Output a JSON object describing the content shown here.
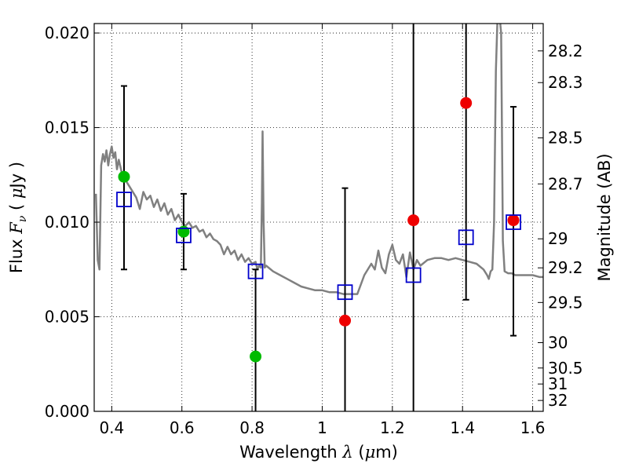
{
  "chart_data": {
    "type": "scatter",
    "xlabel": {
      "prefix": "Wavelength  ",
      "symbol": "λ",
      "suffix": " (",
      "unit_symbol": "μ",
      "unit_rest": "m)"
    },
    "ylabel": {
      "prefix": "Flux  ",
      "symbol": "F",
      "subscript": "ν",
      "suffix": "  ( ",
      "unit_symbol": "μ",
      "unit_rest": "Jy )"
    },
    "y2label": "Magnitude (AB)",
    "xlim": [
      0.35,
      1.63
    ],
    "ylim": [
      0.0,
      0.0205
    ],
    "grid": true,
    "x_ticks": [
      {
        "value": 0.4,
        "label": "0.4"
      },
      {
        "value": 0.6,
        "label": "0.6"
      },
      {
        "value": 0.8,
        "label": "0.8"
      },
      {
        "value": 1.0,
        "label": "1"
      },
      {
        "value": 1.2,
        "label": "1.2"
      },
      {
        "value": 1.4,
        "label": "1.4"
      },
      {
        "value": 1.6,
        "label": "1.6"
      }
    ],
    "y_ticks": [
      {
        "value": 0.0,
        "label": "0.000"
      },
      {
        "value": 0.005,
        "label": "0.005"
      },
      {
        "value": 0.01,
        "label": "0.010"
      },
      {
        "value": 0.015,
        "label": "0.015"
      },
      {
        "value": 0.02,
        "label": "0.020"
      }
    ],
    "y2_ticks": [
      {
        "value": 28.2,
        "label": "28.2"
      },
      {
        "value": 28.3,
        "label": "28.3"
      },
      {
        "value": 28.5,
        "label": "28.5"
      },
      {
        "value": 28.7,
        "label": "28.7"
      },
      {
        "value": 29.0,
        "label": "29"
      },
      {
        "value": 29.2,
        "label": "29.2"
      },
      {
        "value": 29.5,
        "label": "29.5"
      },
      {
        "value": 30.0,
        "label": "30"
      },
      {
        "value": 30.5,
        "label": "30.5"
      },
      {
        "value": 31.0,
        "label": "31"
      },
      {
        "value": 32.0,
        "label": "32"
      }
    ],
    "colors": {
      "model": "#808080",
      "detected": "#00bb00",
      "undetected": "#ee0000",
      "model_phot": "#0000cc",
      "errorbar": "#000000"
    },
    "series": [
      {
        "kind": "line",
        "color": "#808080",
        "x": [
          0.355,
          0.36,
          0.365,
          0.37,
          0.375,
          0.38,
          0.385,
          0.39,
          0.395,
          0.4,
          0.405,
          0.41,
          0.415,
          0.42,
          0.43,
          0.44,
          0.45,
          0.46,
          0.47,
          0.48,
          0.49,
          0.5,
          0.51,
          0.52,
          0.53,
          0.54,
          0.55,
          0.56,
          0.57,
          0.58,
          0.59,
          0.6,
          0.61,
          0.62,
          0.63,
          0.64,
          0.65,
          0.66,
          0.67,
          0.68,
          0.69,
          0.7,
          0.71,
          0.72,
          0.73,
          0.74,
          0.75,
          0.76,
          0.77,
          0.78,
          0.79,
          0.8,
          0.81,
          0.815,
          0.82,
          0.825,
          0.828,
          0.83,
          0.833,
          0.836,
          0.84,
          0.86,
          0.88,
          0.9,
          0.92,
          0.94,
          0.96,
          0.98,
          1.0,
          1.02,
          1.04,
          1.06,
          1.08,
          1.1,
          1.12,
          1.14,
          1.15,
          1.16,
          1.17,
          1.18,
          1.19,
          1.2,
          1.21,
          1.22,
          1.23,
          1.24,
          1.25,
          1.26,
          1.27,
          1.28,
          1.3,
          1.32,
          1.34,
          1.36,
          1.38,
          1.4,
          1.42,
          1.44,
          1.46,
          1.47,
          1.475,
          1.48,
          1.485,
          1.49,
          1.495,
          1.5,
          1.505,
          1.51,
          1.515,
          1.52,
          1.53,
          1.54,
          1.55,
          1.56,
          1.58,
          1.6,
          1.62,
          1.63
        ],
        "y": [
          0.0115,
          0.008,
          0.0075,
          0.013,
          0.0136,
          0.0132,
          0.0138,
          0.013,
          0.0136,
          0.014,
          0.0134,
          0.0137,
          0.0128,
          0.0133,
          0.0125,
          0.0122,
          0.0119,
          0.0116,
          0.0113,
          0.0107,
          0.0116,
          0.0112,
          0.0114,
          0.0108,
          0.0112,
          0.0106,
          0.011,
          0.0104,
          0.0107,
          0.0101,
          0.0104,
          0.01,
          0.0098,
          0.01,
          0.0097,
          0.0098,
          0.0095,
          0.0096,
          0.0092,
          0.0094,
          0.0091,
          0.009,
          0.0088,
          0.0083,
          0.0087,
          0.0083,
          0.0085,
          0.008,
          0.0083,
          0.0079,
          0.0081,
          0.0078,
          0.0079,
          0.0075,
          0.0077,
          0.0076,
          0.011,
          0.0148,
          0.01,
          0.0076,
          0.0077,
          0.0074,
          0.0072,
          0.007,
          0.0068,
          0.0066,
          0.0065,
          0.0064,
          0.0064,
          0.0063,
          0.0063,
          0.0062,
          0.0062,
          0.0062,
          0.0072,
          0.0078,
          0.0075,
          0.0085,
          0.0076,
          0.0073,
          0.0083,
          0.0088,
          0.008,
          0.0078,
          0.0083,
          0.0071,
          0.0084,
          0.0075,
          0.008,
          0.0077,
          0.008,
          0.0081,
          0.0081,
          0.008,
          0.0081,
          0.008,
          0.0079,
          0.0078,
          0.0075,
          0.0072,
          0.007,
          0.0074,
          0.0075,
          0.01,
          0.018,
          0.021,
          0.021,
          0.02,
          0.009,
          0.0074,
          0.0073,
          0.0073,
          0.0072,
          0.0072,
          0.0072,
          0.0072,
          0.0071,
          0.0071
        ]
      },
      {
        "kind": "errorbar",
        "color": "#000000",
        "x": [
          0.435,
          0.605,
          0.81,
          1.065,
          1.26,
          1.41,
          1.545
        ],
        "y_low": [
          0.0075,
          0.0075,
          -0.0005,
          -0.0005,
          -0.0005,
          0.0059,
          0.004
        ],
        "y_high": [
          0.0172,
          0.0115,
          0.0075,
          0.0118,
          0.021,
          0.021,
          0.0161
        ]
      },
      {
        "kind": "points",
        "marker": "circle",
        "color": "#00bb00",
        "x": [
          0.435,
          0.605,
          0.81
        ],
        "y": [
          0.0124,
          0.0095,
          0.0029
        ]
      },
      {
        "kind": "points",
        "marker": "circle",
        "color": "#ee0000",
        "x": [
          1.065,
          1.26,
          1.41,
          1.545
        ],
        "y": [
          0.0048,
          0.0101,
          0.0163,
          0.0101
        ]
      },
      {
        "kind": "points",
        "marker": "square",
        "color": "#0000cc",
        "x": [
          0.435,
          0.605,
          0.81,
          1.065,
          1.26,
          1.41,
          1.545
        ],
        "y": [
          0.0112,
          0.0093,
          0.0074,
          0.0063,
          0.0072,
          0.0092,
          0.01
        ]
      }
    ]
  }
}
